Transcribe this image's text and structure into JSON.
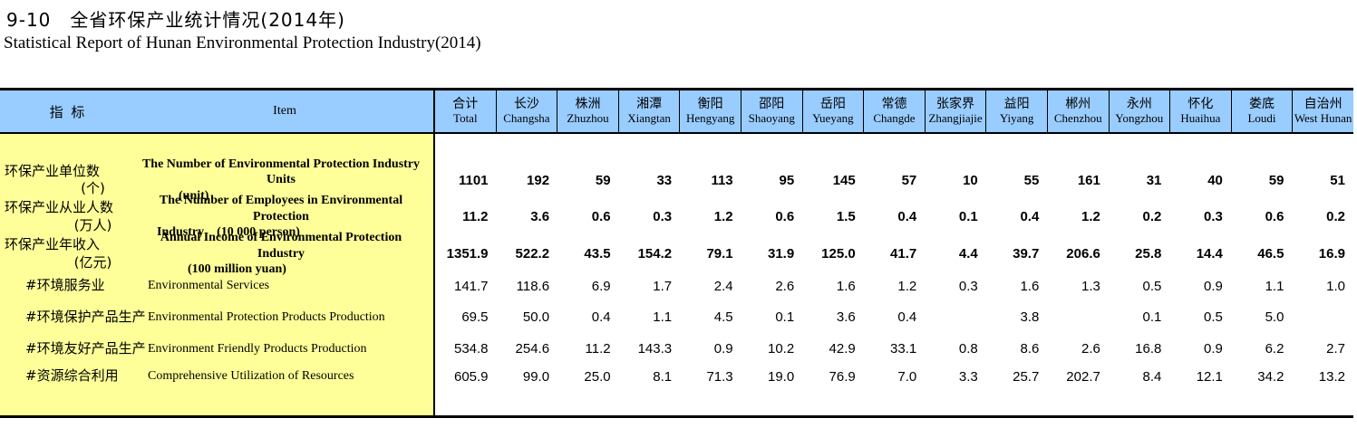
{
  "page": {
    "title_cn": "9-10　全省环保产业统计情况(2014年)",
    "title_en": "Statistical Report of Hunan Environmental Protection Industry(2014)"
  },
  "colors": {
    "header_bg": "#99CCFF",
    "label_bg": "#FFFF99",
    "border": "#000000"
  },
  "table": {
    "header": {
      "indicator_cn": "指 标",
      "indicator_en": "Item",
      "columns": [
        {
          "cn": "合计",
          "en": "Total"
        },
        {
          "cn": "长沙",
          "en": "Changsha"
        },
        {
          "cn": "株洲",
          "en": "Zhuzhou"
        },
        {
          "cn": "湘潭",
          "en": "Xiangtan"
        },
        {
          "cn": "衡阳",
          "en": "Hengyang"
        },
        {
          "cn": "邵阳",
          "en": "Shaoyang"
        },
        {
          "cn": "岳阳",
          "en": "Yueyang"
        },
        {
          "cn": "常德",
          "en": "Changde"
        },
        {
          "cn": "张家界",
          "en": "Zhangjiajie"
        },
        {
          "cn": "益阳",
          "en": "Yiyang"
        },
        {
          "cn": "郴州",
          "en": "Chenzhou"
        },
        {
          "cn": "永州",
          "en": "Yongzhou"
        },
        {
          "cn": "怀化",
          "en": "Huaihua"
        },
        {
          "cn": "娄底",
          "en": "Loudi"
        },
        {
          "cn": "自治州",
          "en": "West Hunan"
        }
      ]
    },
    "rows": [
      {
        "cn1": "环保产业单位数",
        "cn2": "(个)",
        "en1": "The Number of Environmental Protection Industry Units",
        "en2": "(unit)",
        "bold": true,
        "sub": false,
        "values": [
          "1101",
          "192",
          "59",
          "33",
          "113",
          "95",
          "145",
          "57",
          "10",
          "55",
          "161",
          "31",
          "40",
          "59",
          "51"
        ]
      },
      {
        "cn1": "环保产业从业人数",
        "cn2": "(万人)",
        "en1": "The Number of Employees in Environmental Protection",
        "en2": "Industry　(10 000 person)",
        "bold": true,
        "sub": false,
        "values": [
          "11.2",
          "3.6",
          "0.6",
          "0.3",
          "1.2",
          "0.6",
          "1.5",
          "0.4",
          "0.1",
          "0.4",
          "1.2",
          "0.2",
          "0.3",
          "0.6",
          "0.2"
        ]
      },
      {
        "cn1": "环保产业年收入",
        "cn2": "(亿元)",
        "en1": "Annual Income of Environmental Protection Industry",
        "en2": "(100 million yuan)",
        "bold": true,
        "sub": false,
        "values": [
          "1351.9",
          "522.2",
          "43.5",
          "154.2",
          "79.1",
          "31.9",
          "125.0",
          "41.7",
          "4.4",
          "39.7",
          "206.6",
          "25.8",
          "14.4",
          "46.5",
          "16.9"
        ]
      },
      {
        "cn1": "#环境服务业",
        "cn2": "",
        "en1": "Environmental Services",
        "en2": "",
        "bold": false,
        "sub": true,
        "values": [
          "141.7",
          "118.6",
          "6.9",
          "1.7",
          "2.4",
          "2.6",
          "1.6",
          "1.2",
          "0.3",
          "1.6",
          "1.3",
          "0.5",
          "0.9",
          "1.1",
          "1.0"
        ]
      },
      {
        "cn1": "#环境保护产品生产",
        "cn2": "",
        "en1": "Environmental Protection   Products Production",
        "en2": "",
        "bold": false,
        "sub": true,
        "values": [
          "69.5",
          "50.0",
          "0.4",
          "1.1",
          "4.5",
          "0.1",
          "3.6",
          "0.4",
          "",
          "3.8",
          "",
          "0.1",
          "0.5",
          "5.0",
          ""
        ]
      },
      {
        "cn1": "#环境友好产品生产",
        "cn2": "",
        "en1": "Environment Friendly   Products Production",
        "en2": "",
        "bold": false,
        "sub": true,
        "values": [
          "534.8",
          "254.6",
          "11.2",
          "143.3",
          "0.9",
          "10.2",
          "42.9",
          "33.1",
          "0.8",
          "8.6",
          "2.6",
          "16.8",
          "0.9",
          "6.2",
          "2.7"
        ]
      },
      {
        "cn1": "#资源综合利用",
        "cn2": "",
        "en1": "Comprehensive Utilization of   Resources",
        "en2": "",
        "bold": false,
        "sub": true,
        "values": [
          "605.9",
          "99.0",
          "25.0",
          "8.1",
          "71.3",
          "19.0",
          "76.9",
          "7.0",
          "3.3",
          "25.7",
          "202.7",
          "8.4",
          "12.1",
          "34.2",
          "13.2"
        ]
      }
    ]
  }
}
